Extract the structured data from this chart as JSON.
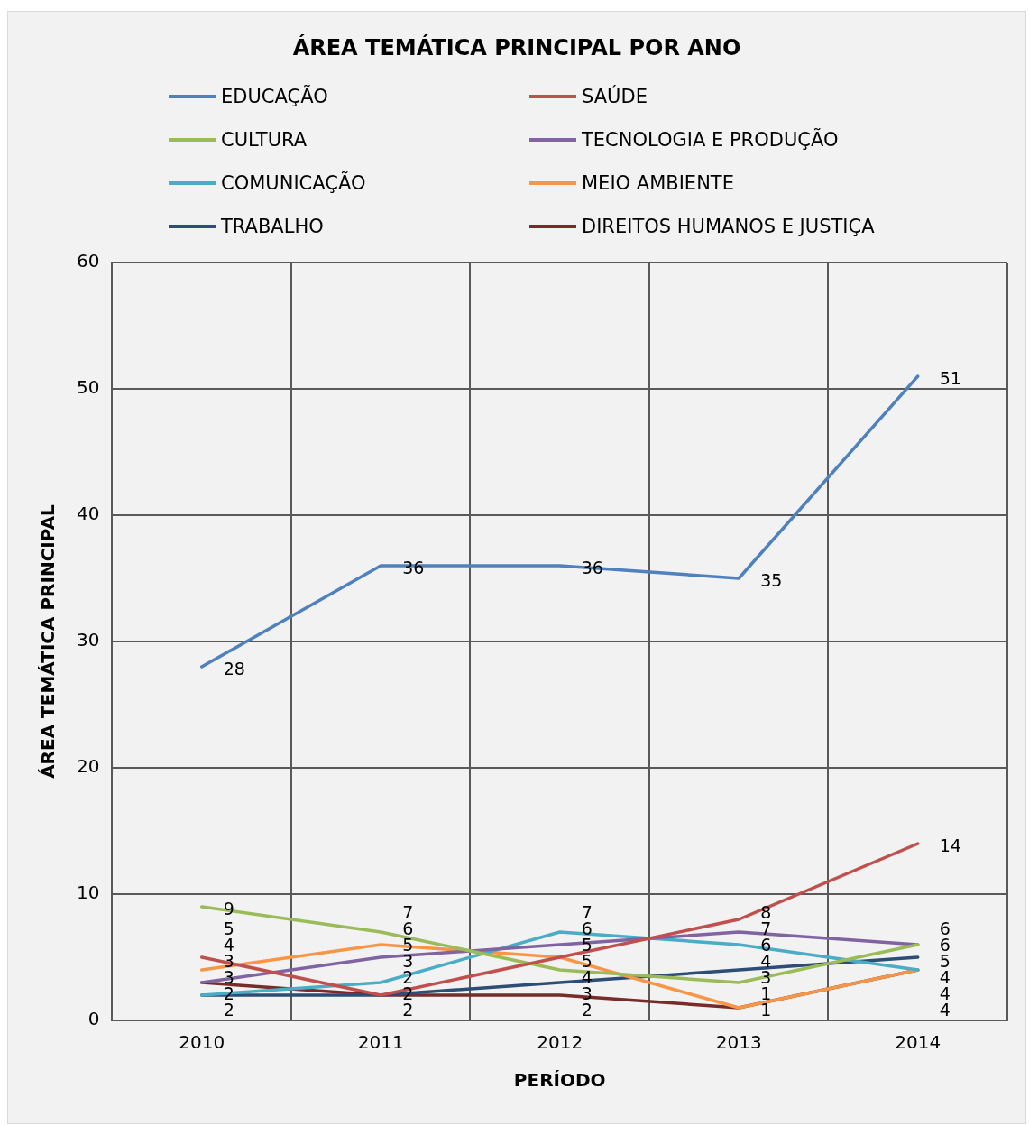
{
  "chart_data": {
    "type": "line",
    "title": "ÁREA TEMÁTICA PRINCIPAL POR ANO",
    "xlabel": "PERÍODO",
    "ylabel": "ÁREA TEMÁTICA PRINCIPAL",
    "categories": [
      "2010",
      "2011",
      "2012",
      "2013",
      "2014"
    ],
    "series": [
      {
        "name": "EDUCAÇÃO",
        "color": "#4f81bd",
        "values": [
          28,
          36,
          36,
          35,
          51
        ]
      },
      {
        "name": "SAÚDE",
        "color": "#c0504d",
        "values": [
          5,
          2,
          5,
          8,
          14
        ]
      },
      {
        "name": "CULTURA",
        "color": "#9bbb59",
        "values": [
          9,
          7,
          4,
          3,
          6
        ]
      },
      {
        "name": "TECNOLOGIA E PRODUÇÃO",
        "color": "#8064a2",
        "values": [
          3,
          5,
          6,
          7,
          6
        ]
      },
      {
        "name": "COMUNICAÇÃO",
        "color": "#4bacc6",
        "values": [
          2,
          3,
          7,
          6,
          4
        ]
      },
      {
        "name": "MEIO AMBIENTE",
        "color": "#f79646",
        "values": [
          4,
          6,
          5,
          1,
          4
        ]
      },
      {
        "name": "TRABALHO",
        "color": "#2c4d75",
        "values": [
          2,
          2,
          3,
          4,
          5
        ]
      },
      {
        "name": "DIREITOS HUMANOS E JUSTIÇA",
        "color": "#772c2a",
        "values": [
          3,
          2,
          2,
          1,
          4
        ]
      }
    ],
    "ylim": [
      0,
      60
    ],
    "yticks": [
      0,
      10,
      20,
      30,
      40,
      50,
      60
    ],
    "grid": true,
    "legend": "top",
    "marker": "none",
    "line_style": "solid",
    "data_labels": true
  }
}
